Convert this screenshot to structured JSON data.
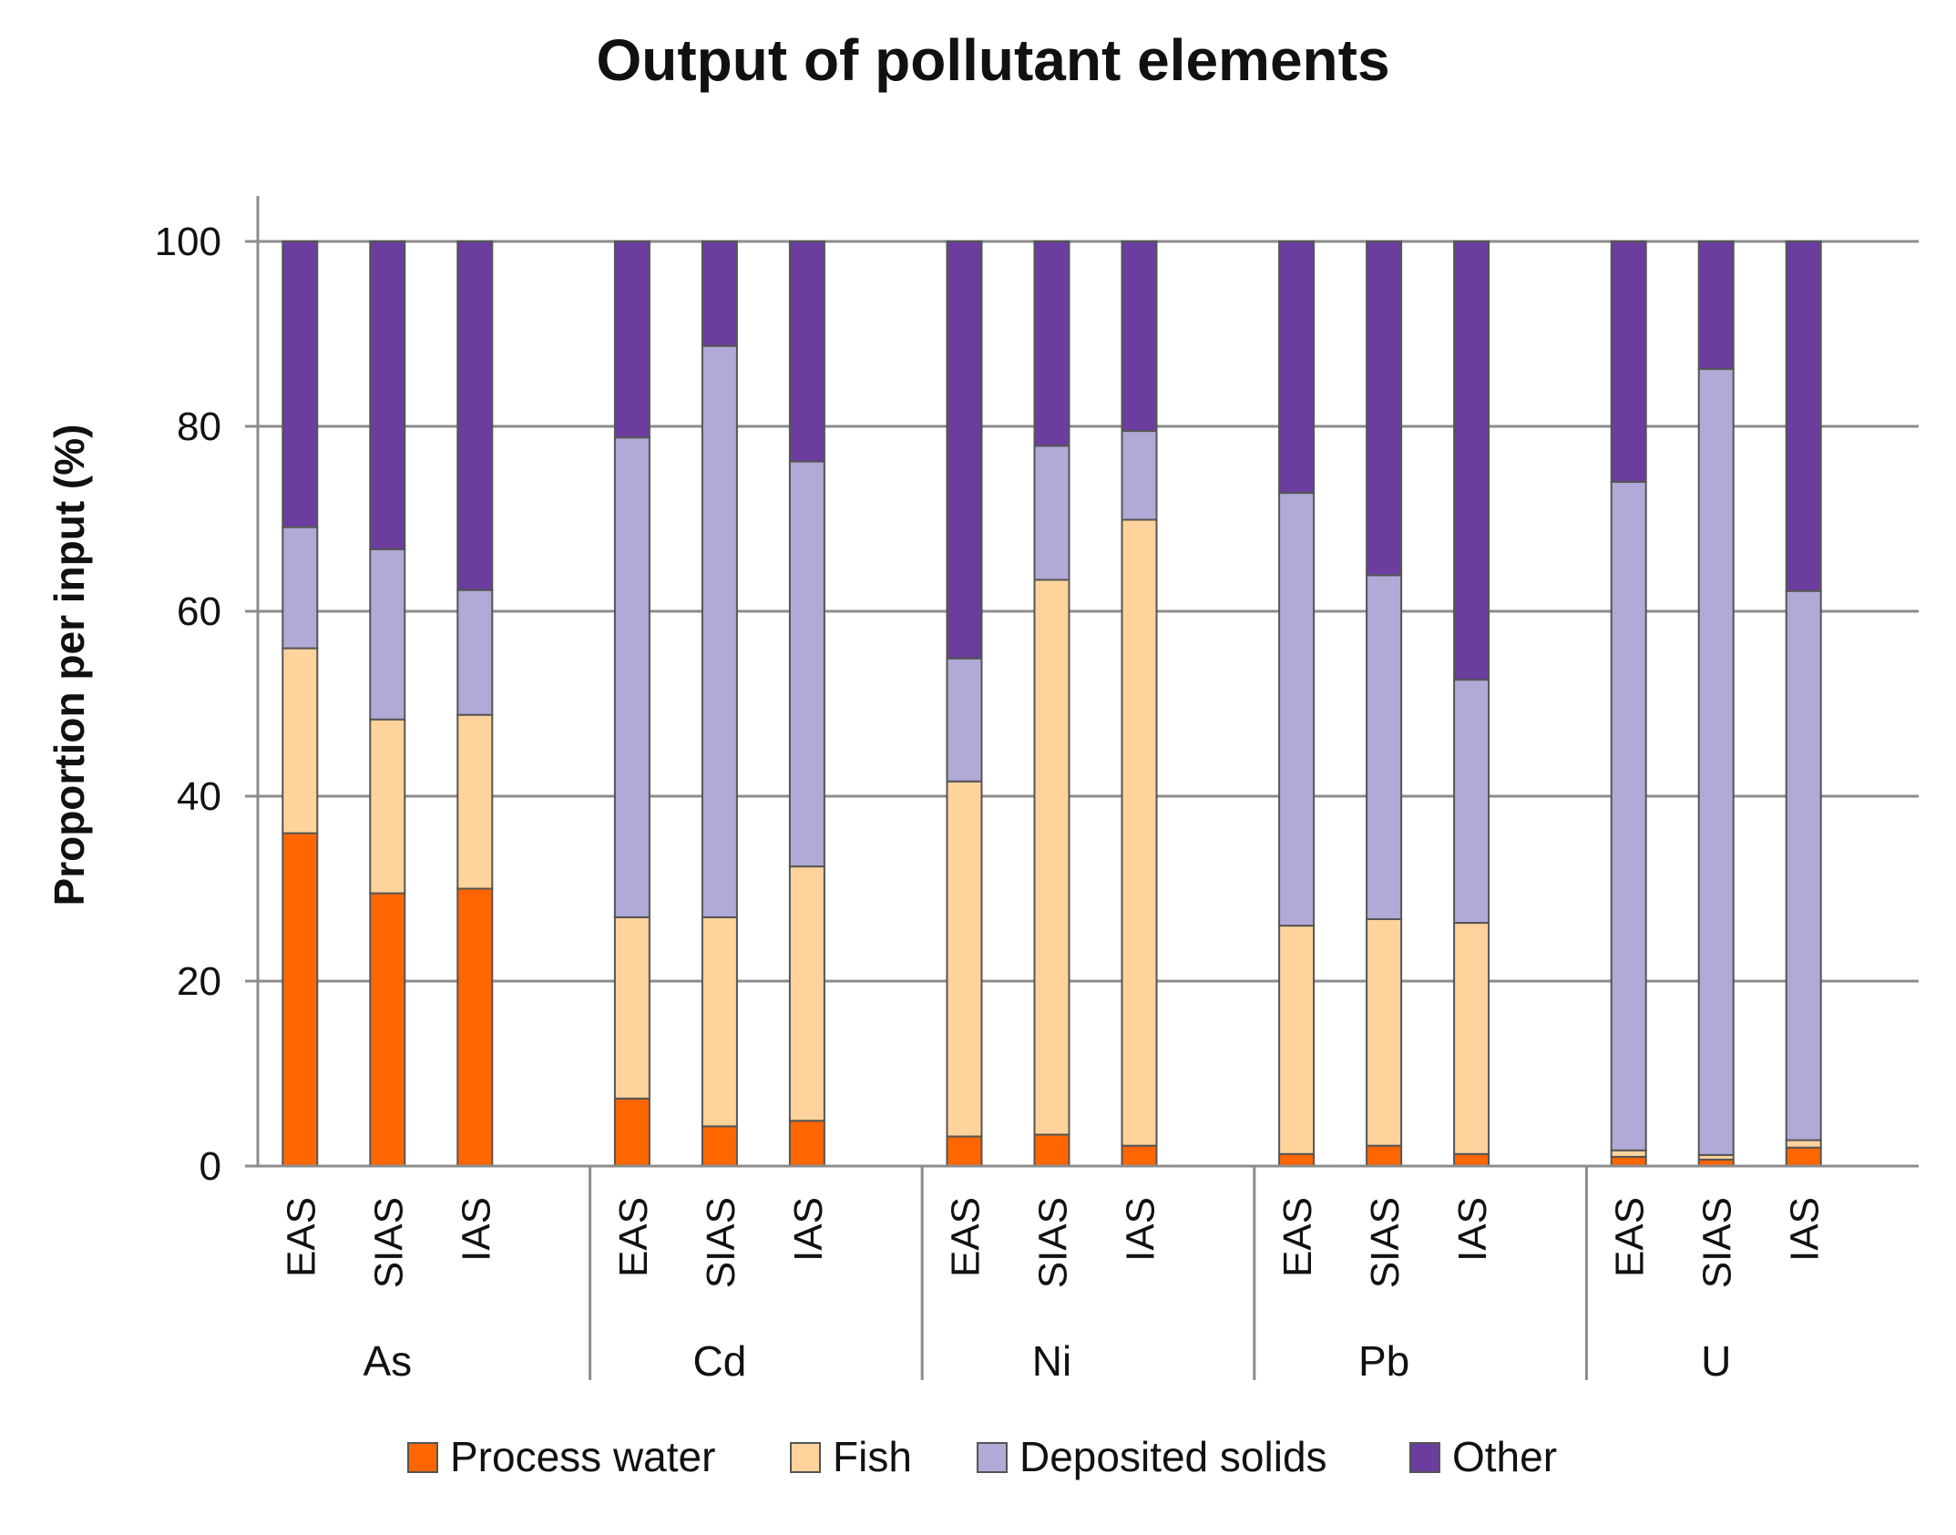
{
  "chart_data": {
    "type": "bar",
    "stacked": true,
    "title": "Output of pollutant elements",
    "xlabel": "",
    "ylabel": "Proportion per input (%)",
    "ylim": [
      0,
      100
    ],
    "yticks": [
      0,
      20,
      40,
      60,
      80,
      100
    ],
    "grid": true,
    "legend_position": "bottom",
    "groups": [
      "As",
      "Cd",
      "Ni",
      "Pb",
      "U"
    ],
    "subcategories": [
      "EAS",
      "SIAS",
      "IAS"
    ],
    "series": [
      {
        "name": "Process water",
        "color": "#ff6600",
        "values": [
          36,
          29.5,
          30,
          7.3,
          4.3,
          4.9,
          3.2,
          3.4,
          2.2,
          1.3,
          2.2,
          1.3,
          1,
          0.7,
          2
        ]
      },
      {
        "name": "Fish",
        "color": "#ffd39b",
        "values": [
          20,
          18.8,
          18.8,
          19.6,
          22.6,
          27.5,
          38.4,
          60,
          67.7,
          24.7,
          24.5,
          25,
          0.7,
          0.5,
          0.8
        ]
      },
      {
        "name": "Deposited solids",
        "color": "#b1a9d6",
        "values": [
          13.1,
          18.4,
          13.5,
          51.9,
          61.8,
          43.8,
          13.3,
          14.5,
          9.6,
          46.8,
          37.2,
          26.3,
          72.3,
          85,
          59.4
        ]
      },
      {
        "name": "Other",
        "color": "#6a3d9e",
        "values": [
          30.9,
          33.3,
          37.7,
          21.2,
          11.3,
          23.8,
          45.1,
          22.1,
          20.5,
          27.2,
          36.1,
          47.4,
          26,
          13.8,
          37.8
        ]
      }
    ]
  }
}
